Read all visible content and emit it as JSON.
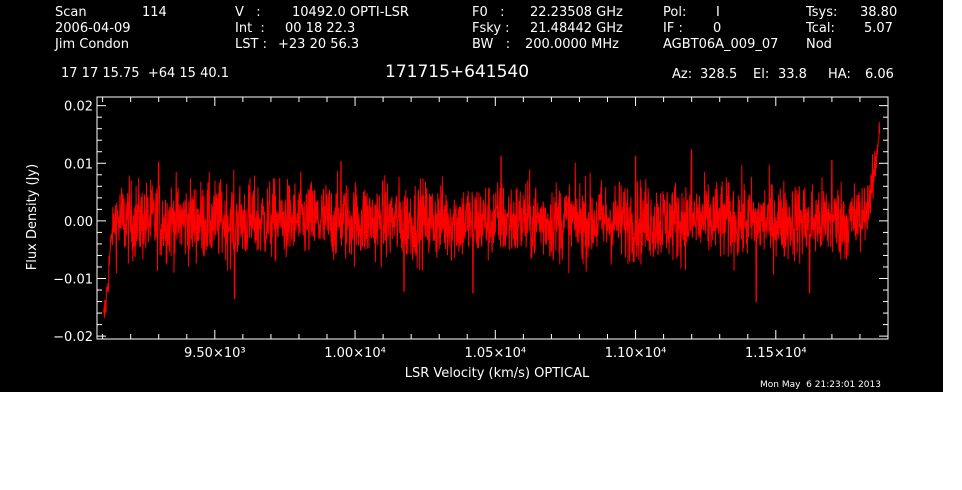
{
  "header": {
    "scan_label": "Scan",
    "scan_value": "114",
    "date": "2006-04-09",
    "observer": "Jim Condon",
    "v_label": "V   :",
    "v_value": "10492.0 OPTI-LSR",
    "int_label": "Int  :",
    "int_value": "00 18 22.3",
    "lst_label": "LST :",
    "lst_value": "+23 20 56.3",
    "f0_label": "F0   :",
    "f0_value": "22.23508 GHz",
    "fsky_label": "Fsky :",
    "fsky_value": "21.48442 GHz",
    "bw_label": "BW   :",
    "bw_value": "200.0000 MHz",
    "pol_label": "Pol:",
    "pol_value": "I",
    "if_label": "IF :",
    "if_value": "0",
    "project": "AGBT06A_009_07",
    "tsys_label": "Tsys:",
    "tsys_value": "38.80",
    "tcal_label": "Tcal:",
    "tcal_value": "5.07",
    "mode": "Nod",
    "coords": "17 17 15.75  +64 15 40.1",
    "source": "171715+641540",
    "az_label": "Az:",
    "az_value": "328.5",
    "el_label": "El:",
    "el_value": "33.8",
    "ha_label": "HA:",
    "ha_value": "6.06",
    "timestamp": "Mon May  6 21:23:01 2013"
  },
  "chart_data": {
    "type": "line",
    "xlabel": "LSR Velocity (km/s) OPTICAL",
    "ylabel": "Flux Density (Jy)",
    "xlim": [
      9080,
      11900
    ],
    "ylim": [
      -0.0205,
      0.0215
    ],
    "x_ticks": [
      9500,
      10000,
      10500,
      11000,
      11500
    ],
    "x_tick_labels": [
      "9.50×10³",
      "1.00×10⁴",
      "1.05×10⁴",
      "1.10×10⁴",
      "1.15×10⁴"
    ],
    "y_ticks": [
      0.02,
      0.01,
      0.0,
      -0.01,
      -0.02
    ],
    "y_tick_labels": [
      "0.02",
      "0.01",
      "0.00",
      "−0.01",
      "−0.02"
    ],
    "series": [
      {
        "color": "#ff0000",
        "x_start": 9103,
        "x_end": 11870,
        "baseline": 0.0,
        "rms": 0.0035,
        "low_edge": {
          "x": [
            9103,
            9110,
            9118,
            9126,
            9134,
            9145
          ],
          "y": [
            -0.0175,
            -0.015,
            -0.011,
            -0.006,
            -0.002,
            0.0
          ]
        },
        "high_edge": {
          "x": [
            11810,
            11830,
            11845,
            11858,
            11866,
            11870
          ],
          "y": [
            0.001,
            0.003,
            0.006,
            0.011,
            0.015,
            0.017
          ]
        },
        "peaks": {
          "x": [
            9300,
            9950,
            10520,
            11000,
            11200,
            11700
          ],
          "y": [
            0.0102,
            0.0103,
            0.0112,
            0.0112,
            0.0123,
            0.0105
          ]
        },
        "dips": {
          "x": [
            9570,
            10175,
            10420,
            11430,
            11620
          ],
          "y": [
            -0.0135,
            -0.0122,
            -0.0125,
            -0.014,
            -0.0125
          ]
        }
      }
    ]
  }
}
